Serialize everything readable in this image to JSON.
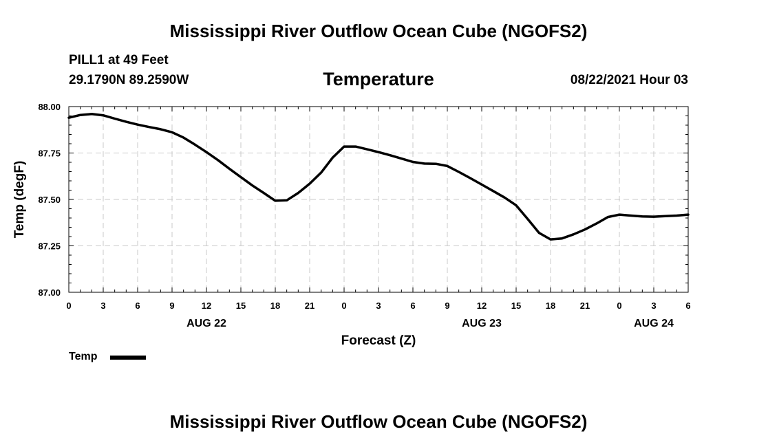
{
  "header": {
    "title": "Mississippi River Outflow Ocean Cube (NGOFS2)",
    "station": "PILL1 at 49 Feet",
    "coords": "29.1790N  89.2590W",
    "variable": "Temperature",
    "datetime": "08/22/2021 Hour 03"
  },
  "footer": {
    "title": "Mississippi River Outflow Ocean Cube (NGOFS2)"
  },
  "legend": {
    "label": "Temp",
    "color": "#000000"
  },
  "chart_data": {
    "type": "line",
    "title": "Temperature",
    "xlabel": "Forecast (Z)",
    "ylabel": "Temp (degF)",
    "xlim": [
      0,
      54
    ],
    "ylim": [
      87.0,
      88.0
    ],
    "grid": true,
    "legend_position": "bottom-left",
    "x_ticks": [
      0,
      3,
      6,
      9,
      12,
      15,
      18,
      21,
      24,
      27,
      30,
      33,
      36,
      39,
      42,
      45,
      48,
      51,
      54
    ],
    "x_tick_labels": [
      "0",
      "3",
      "6",
      "9",
      "12",
      "15",
      "18",
      "21",
      "0",
      "3",
      "6",
      "9",
      "12",
      "15",
      "18",
      "21",
      "0",
      "3",
      "6"
    ],
    "y_ticks": [
      87.0,
      87.25,
      87.5,
      87.75,
      88.0
    ],
    "y_tick_labels": [
      "87.00",
      "87.25",
      "87.50",
      "87.75",
      "88.00"
    ],
    "date_labels": [
      {
        "x": 12,
        "label": "AUG 22"
      },
      {
        "x": 36,
        "label": "AUG 23"
      },
      {
        "x": 51,
        "label": "AUG 24"
      }
    ],
    "series": [
      {
        "name": "Temp",
        "x": [
          0,
          1,
          2,
          3,
          4,
          5,
          6,
          7,
          8,
          9,
          10,
          11,
          12,
          13,
          14,
          15,
          16,
          17,
          18,
          19,
          20,
          21,
          22,
          23,
          24,
          25,
          26,
          27,
          28,
          29,
          30,
          31,
          32,
          33,
          34,
          35,
          36,
          37,
          38,
          39,
          40,
          41,
          42,
          43,
          44,
          45,
          46,
          47,
          48,
          49,
          50,
          51,
          52,
          53,
          54
        ],
        "y": [
          87.94,
          87.955,
          87.96,
          87.953,
          87.935,
          87.918,
          87.903,
          87.89,
          87.878,
          87.862,
          87.833,
          87.795,
          87.755,
          87.712,
          87.665,
          87.62,
          87.575,
          87.535,
          87.493,
          87.495,
          87.535,
          87.585,
          87.645,
          87.725,
          87.785,
          87.785,
          87.77,
          87.755,
          87.738,
          87.72,
          87.702,
          87.693,
          87.692,
          87.68,
          87.648,
          87.615,
          87.58,
          87.545,
          87.51,
          87.468,
          87.395,
          87.32,
          87.285,
          87.29,
          87.312,
          87.338,
          87.37,
          87.405,
          87.418,
          87.413,
          87.408,
          87.407,
          87.41,
          87.413,
          87.418
        ]
      }
    ]
  }
}
